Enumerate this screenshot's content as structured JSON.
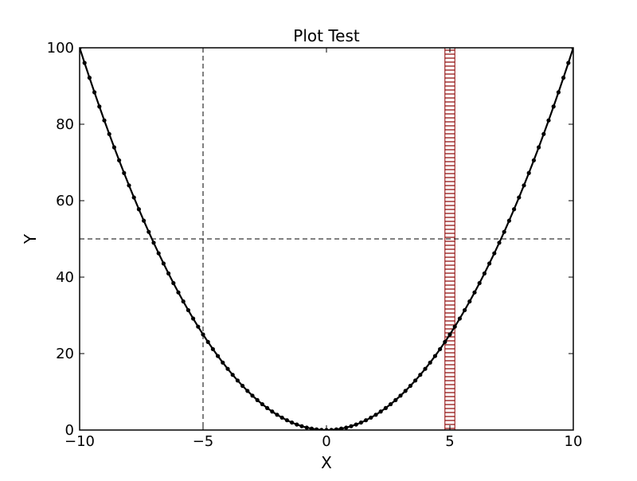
{
  "chart_data": {
    "type": "line",
    "title": "Plot Test",
    "xlabel": "X",
    "ylabel": "Y",
    "xlim": [
      -10,
      10
    ],
    "ylim": [
      0,
      100
    ],
    "x_ticks": [
      -10,
      -5,
      0,
      5,
      10
    ],
    "y_ticks": [
      0,
      20,
      40,
      60,
      80,
      100
    ],
    "x_tick_labels": [
      "−10",
      "−5",
      "0",
      "5",
      "10"
    ],
    "y_tick_labels": [
      "0",
      "20",
      "40",
      "60",
      "80",
      "100"
    ],
    "grid": false,
    "legend": "none",
    "series": [
      {
        "x": [
          -10,
          -9.8,
          -9.6,
          -9.4,
          -9.2,
          -9.0,
          -8.8,
          -8.6,
          -8.4,
          -8.2,
          -8.0,
          -7.8,
          -7.6,
          -7.4,
          -7.2,
          -7.0,
          -6.8,
          -6.6,
          -6.4,
          -6.2,
          -6.0,
          -5.8,
          -5.6,
          -5.4,
          -5.2,
          -5.0,
          -4.8,
          -4.6,
          -4.4,
          -4.2,
          -4.0,
          -3.8,
          -3.6,
          -3.4,
          -3.2,
          -3.0,
          -2.8,
          -2.6,
          -2.4,
          -2.2,
          -2.0,
          -1.8,
          -1.6,
          -1.4,
          -1.2,
          -1.0,
          -0.8,
          -0.6,
          -0.4,
          -0.2,
          0.0,
          0.2,
          0.4,
          0.6,
          0.8,
          1.0,
          1.2,
          1.4,
          1.6,
          1.8,
          2.0,
          2.2,
          2.4,
          2.6,
          2.8,
          3.0,
          3.2,
          3.4,
          3.6,
          3.8,
          4.0,
          4.2,
          4.4,
          4.6,
          4.8,
          5.0,
          5.2,
          5.4,
          5.6,
          5.8,
          6.0,
          6.2,
          6.4,
          6.6,
          6.8,
          7.0,
          7.2,
          7.4,
          7.6,
          7.8,
          8.0,
          8.2,
          8.4,
          8.6,
          8.8,
          9.0,
          9.2,
          9.4,
          9.6,
          9.8,
          10.0
        ],
        "y": [
          100,
          96.04,
          92.16,
          88.36,
          84.64,
          81.0,
          77.44,
          73.96,
          70.56,
          67.24,
          64.0,
          60.84,
          57.76,
          54.76,
          51.84,
          49.0,
          46.24,
          43.56,
          40.96,
          38.44,
          36.0,
          33.64,
          31.36,
          29.16,
          27.04,
          25.0,
          23.04,
          21.16,
          19.36,
          17.64,
          16.0,
          14.44,
          12.96,
          11.56,
          10.24,
          9.0,
          7.84,
          6.76,
          5.76,
          4.84,
          4.0,
          3.24,
          2.56,
          1.96,
          1.44,
          1.0,
          0.64,
          0.36,
          0.16,
          0.04,
          0.0,
          0.04,
          0.16,
          0.36,
          0.64,
          1.0,
          1.44,
          1.96,
          2.56,
          3.24,
          4.0,
          4.84,
          5.76,
          6.76,
          7.84,
          9.0,
          10.24,
          11.56,
          12.96,
          14.44,
          16.0,
          17.64,
          19.36,
          21.16,
          23.04,
          25.0,
          27.04,
          29.16,
          31.36,
          33.64,
          36.0,
          38.44,
          40.96,
          43.56,
          46.24,
          49.0,
          51.84,
          54.76,
          57.76,
          60.84,
          64.0,
          67.24,
          70.56,
          73.96,
          77.44,
          81.0,
          84.64,
          88.36,
          92.16,
          96.04,
          100.0
        ],
        "color": "#000000",
        "marker": "dot"
      }
    ],
    "annotations": {
      "vertical_line_x": -5,
      "horizontal_line_y": 50,
      "vertical_band": {
        "x_start": 4.8,
        "x_end": 5.2,
        "hatch_color": "#8b0000"
      }
    }
  }
}
